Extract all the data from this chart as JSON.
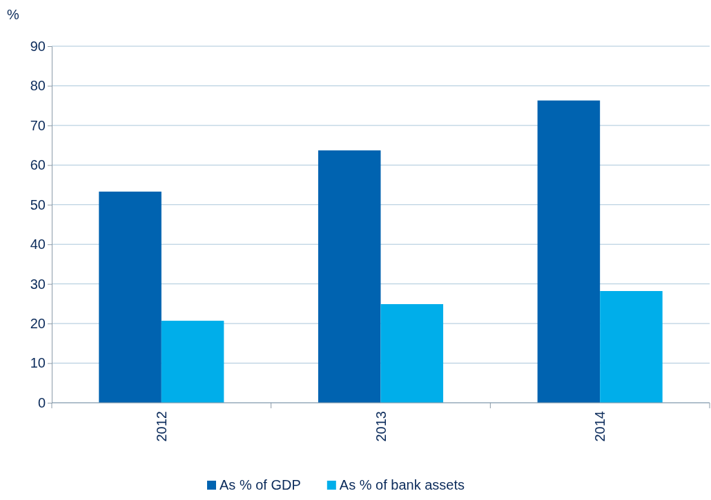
{
  "chart_data": {
    "type": "bar",
    "ylabel": "%",
    "categories": [
      "2012",
      "2013",
      "2014"
    ],
    "series": [
      {
        "name": "As % of GDP",
        "color": "#0063b0",
        "values": [
          53.3,
          63.7,
          76.3
        ]
      },
      {
        "name": "As % of bank assets",
        "color": "#00aeea",
        "values": [
          20.7,
          24.9,
          28.2
        ]
      }
    ],
    "ylim": [
      0,
      90
    ],
    "yticks": [
      0,
      10,
      20,
      30,
      40,
      50,
      60,
      70,
      80,
      90
    ],
    "grid": "y",
    "legend": "bottom"
  }
}
